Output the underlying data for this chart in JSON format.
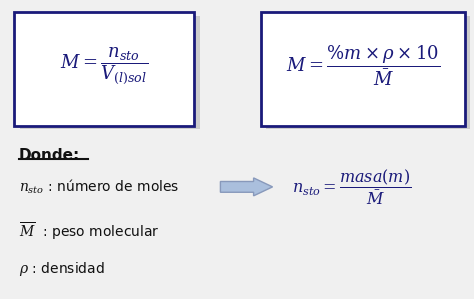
{
  "bg_color": "#f0f0f0",
  "box_bg": "#ffffff",
  "box_border": "#1a1a7a",
  "shadow_color": "#cccccc",
  "text_color": "#1a1a7a",
  "arrow_color": "#aabfdd",
  "arrow_edge": "#8899bb",
  "donde_label": "Donde:",
  "figsize": [
    4.74,
    2.99
  ],
  "dpi": 100
}
